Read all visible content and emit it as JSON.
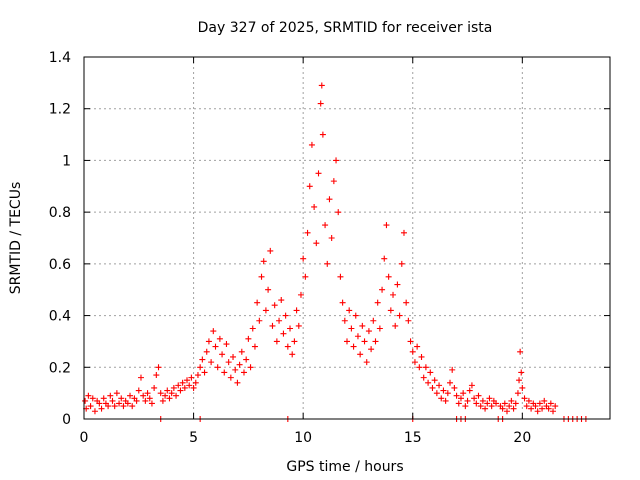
{
  "chart_data": {
    "type": "scatter",
    "title": "Day 327 of 2025, SRMTID for receiver ista",
    "xlabel": "GPS time / hours",
    "ylabel": "SRMTID / TECUs",
    "xlim": [
      0,
      24
    ],
    "ylim": [
      0,
      1.4
    ],
    "x_ticks": [
      0,
      5,
      10,
      15,
      20
    ],
    "x_tick_labels": [
      "0",
      "5",
      "10",
      "15",
      "20"
    ],
    "y_ticks": [
      0,
      0.2,
      0.4,
      0.6,
      0.8,
      1.0,
      1.2,
      1.4
    ],
    "y_tick_labels": [
      "0",
      "0.2",
      "0.4",
      "0.6",
      "0.8",
      "1",
      "1.2",
      "1.4"
    ],
    "grid": true,
    "marker": "+",
    "series": [
      {
        "name": "SRMTID",
        "color": "#ff0000",
        "points": [
          [
            0.05,
            0.07
          ],
          [
            0.1,
            0.04
          ],
          [
            0.2,
            0.09
          ],
          [
            0.3,
            0.05
          ],
          [
            0.4,
            0.08
          ],
          [
            0.5,
            0.03
          ],
          [
            0.6,
            0.07
          ],
          [
            0.7,
            0.06
          ],
          [
            0.8,
            0.04
          ],
          [
            0.9,
            0.08
          ],
          [
            1.0,
            0.06
          ],
          [
            1.1,
            0.05
          ],
          [
            1.2,
            0.09
          ],
          [
            1.3,
            0.07
          ],
          [
            1.4,
            0.05
          ],
          [
            1.5,
            0.1
          ],
          [
            1.6,
            0.06
          ],
          [
            1.7,
            0.08
          ],
          [
            1.8,
            0.05
          ],
          [
            1.9,
            0.07
          ],
          [
            2.0,
            0.06
          ],
          [
            2.1,
            0.09
          ],
          [
            2.2,
            0.05
          ],
          [
            2.3,
            0.08
          ],
          [
            2.4,
            0.07
          ],
          [
            2.5,
            0.11
          ],
          [
            2.6,
            0.16
          ],
          [
            2.7,
            0.09
          ],
          [
            2.8,
            0.07
          ],
          [
            2.9,
            0.1
          ],
          [
            3.0,
            0.08
          ],
          [
            3.1,
            0.06
          ],
          [
            3.2,
            0.12
          ],
          [
            3.3,
            0.17
          ],
          [
            3.4,
            0.2
          ],
          [
            3.5,
            0.1
          ],
          [
            3.6,
            0.07
          ],
          [
            3.7,
            0.09
          ],
          [
            3.8,
            0.11
          ],
          [
            3.9,
            0.08
          ],
          [
            4.0,
            0.1
          ],
          [
            4.1,
            0.12
          ],
          [
            4.2,
            0.09
          ],
          [
            4.3,
            0.13
          ],
          [
            4.4,
            0.11
          ],
          [
            4.5,
            0.14
          ],
          [
            4.6,
            0.12
          ],
          [
            4.7,
            0.15
          ],
          [
            4.8,
            0.13
          ],
          [
            4.9,
            0.16
          ],
          [
            5.0,
            0.12
          ],
          [
            5.1,
            0.14
          ],
          [
            5.2,
            0.17
          ],
          [
            5.3,
            0.2
          ],
          [
            5.4,
            0.23
          ],
          [
            5.5,
            0.18
          ],
          [
            5.6,
            0.26
          ],
          [
            5.7,
            0.3
          ],
          [
            5.8,
            0.22
          ],
          [
            5.9,
            0.34
          ],
          [
            6.0,
            0.28
          ],
          [
            6.1,
            0.2
          ],
          [
            6.2,
            0.31
          ],
          [
            6.3,
            0.25
          ],
          [
            6.4,
            0.18
          ],
          [
            6.5,
            0.29
          ],
          [
            6.6,
            0.22
          ],
          [
            6.7,
            0.16
          ],
          [
            6.8,
            0.24
          ],
          [
            6.9,
            0.19
          ],
          [
            7.0,
            0.14
          ],
          [
            7.1,
            0.21
          ],
          [
            7.2,
            0.26
          ],
          [
            7.3,
            0.18
          ],
          [
            7.4,
            0.23
          ],
          [
            7.5,
            0.31
          ],
          [
            7.6,
            0.2
          ],
          [
            7.7,
            0.35
          ],
          [
            7.8,
            0.28
          ],
          [
            7.9,
            0.45
          ],
          [
            8.0,
            0.38
          ],
          [
            8.1,
            0.55
          ],
          [
            8.2,
            0.61
          ],
          [
            8.3,
            0.42
          ],
          [
            8.4,
            0.5
          ],
          [
            8.5,
            0.65
          ],
          [
            8.6,
            0.36
          ],
          [
            8.7,
            0.44
          ],
          [
            8.8,
            0.3
          ],
          [
            8.9,
            0.38
          ],
          [
            9.0,
            0.46
          ],
          [
            9.1,
            0.33
          ],
          [
            9.2,
            0.4
          ],
          [
            9.3,
            0.28
          ],
          [
            9.4,
            0.35
          ],
          [
            9.5,
            0.25
          ],
          [
            9.6,
            0.3
          ],
          [
            9.7,
            0.42
          ],
          [
            9.8,
            0.36
          ],
          [
            9.9,
            0.48
          ],
          [
            10.0,
            0.62
          ],
          [
            10.1,
            0.55
          ],
          [
            10.2,
            0.72
          ],
          [
            10.3,
            0.9
          ],
          [
            10.4,
            1.06
          ],
          [
            10.5,
            0.82
          ],
          [
            10.6,
            0.68
          ],
          [
            10.7,
            0.95
          ],
          [
            10.8,
            1.22
          ],
          [
            10.85,
            1.29
          ],
          [
            10.9,
            1.1
          ],
          [
            11.0,
            0.75
          ],
          [
            11.1,
            0.6
          ],
          [
            11.2,
            0.85
          ],
          [
            11.3,
            0.7
          ],
          [
            11.4,
            0.92
          ],
          [
            11.5,
            1.0
          ],
          [
            11.6,
            0.8
          ],
          [
            11.7,
            0.55
          ],
          [
            11.8,
            0.45
          ],
          [
            11.9,
            0.38
          ],
          [
            12.0,
            0.3
          ],
          [
            12.1,
            0.42
          ],
          [
            12.2,
            0.35
          ],
          [
            12.3,
            0.28
          ],
          [
            12.4,
            0.4
          ],
          [
            12.5,
            0.32
          ],
          [
            12.6,
            0.25
          ],
          [
            12.7,
            0.36
          ],
          [
            12.8,
            0.3
          ],
          [
            12.9,
            0.22
          ],
          [
            13.0,
            0.34
          ],
          [
            13.1,
            0.27
          ],
          [
            13.2,
            0.38
          ],
          [
            13.3,
            0.3
          ],
          [
            13.4,
            0.45
          ],
          [
            13.5,
            0.35
          ],
          [
            13.6,
            0.5
          ],
          [
            13.7,
            0.62
          ],
          [
            13.8,
            0.75
          ],
          [
            13.9,
            0.55
          ],
          [
            14.0,
            0.42
          ],
          [
            14.1,
            0.48
          ],
          [
            14.2,
            0.36
          ],
          [
            14.3,
            0.52
          ],
          [
            14.4,
            0.4
          ],
          [
            14.5,
            0.6
          ],
          [
            14.6,
            0.72
          ],
          [
            14.7,
            0.45
          ],
          [
            14.8,
            0.38
          ],
          [
            14.9,
            0.3
          ],
          [
            15.0,
            0.26
          ],
          [
            15.1,
            0.22
          ],
          [
            15.2,
            0.28
          ],
          [
            15.3,
            0.2
          ],
          [
            15.4,
            0.24
          ],
          [
            15.5,
            0.16
          ],
          [
            15.6,
            0.2
          ],
          [
            15.7,
            0.14
          ],
          [
            15.8,
            0.18
          ],
          [
            15.9,
            0.12
          ],
          [
            16.0,
            0.15
          ],
          [
            16.1,
            0.1
          ],
          [
            16.2,
            0.13
          ],
          [
            16.3,
            0.08
          ],
          [
            16.4,
            0.11
          ],
          [
            16.5,
            0.07
          ],
          [
            16.6,
            0.1
          ],
          [
            16.7,
            0.14
          ],
          [
            16.8,
            0.19
          ],
          [
            16.9,
            0.12
          ],
          [
            17.0,
            0.09
          ],
          [
            17.1,
            0.06
          ],
          [
            17.2,
            0.08
          ],
          [
            17.3,
            0.1
          ],
          [
            17.4,
            0.05
          ],
          [
            17.5,
            0.07
          ],
          [
            17.6,
            0.11
          ],
          [
            17.7,
            0.13
          ],
          [
            17.8,
            0.08
          ],
          [
            17.9,
            0.06
          ],
          [
            18.0,
            0.09
          ],
          [
            18.1,
            0.05
          ],
          [
            18.2,
            0.07
          ],
          [
            18.3,
            0.04
          ],
          [
            18.4,
            0.06
          ],
          [
            18.5,
            0.08
          ],
          [
            18.6,
            0.05
          ],
          [
            18.7,
            0.07
          ],
          [
            18.8,
            0.06
          ],
          [
            19.0,
            0.05
          ],
          [
            19.1,
            0.04
          ],
          [
            19.2,
            0.06
          ],
          [
            19.3,
            0.03
          ],
          [
            19.4,
            0.05
          ],
          [
            19.5,
            0.07
          ],
          [
            19.6,
            0.04
          ],
          [
            19.7,
            0.06
          ],
          [
            19.8,
            0.1
          ],
          [
            19.85,
            0.15
          ],
          [
            19.9,
            0.26
          ],
          [
            19.95,
            0.18
          ],
          [
            20.0,
            0.12
          ],
          [
            20.1,
            0.08
          ],
          [
            20.2,
            0.05
          ],
          [
            20.3,
            0.07
          ],
          [
            20.4,
            0.04
          ],
          [
            20.5,
            0.06
          ],
          [
            20.6,
            0.05
          ],
          [
            20.7,
            0.03
          ],
          [
            20.8,
            0.06
          ],
          [
            20.9,
            0.04
          ],
          [
            21.0,
            0.07
          ],
          [
            21.1,
            0.05
          ],
          [
            21.2,
            0.04
          ],
          [
            21.3,
            0.06
          ],
          [
            21.4,
            0.03
          ],
          [
            21.5,
            0.05
          ],
          [
            3.5,
            0.0
          ],
          [
            5.3,
            0.0
          ],
          [
            9.3,
            0.0
          ],
          [
            15.0,
            0.0
          ],
          [
            17.0,
            0.0
          ],
          [
            17.2,
            0.0
          ],
          [
            17.4,
            0.0
          ],
          [
            18.9,
            0.0
          ],
          [
            19.1,
            0.0
          ],
          [
            21.9,
            0.0
          ],
          [
            22.1,
            0.0
          ],
          [
            22.3,
            0.0
          ],
          [
            22.5,
            0.0
          ],
          [
            22.7,
            0.0
          ],
          [
            22.9,
            0.0
          ]
        ]
      }
    ]
  }
}
